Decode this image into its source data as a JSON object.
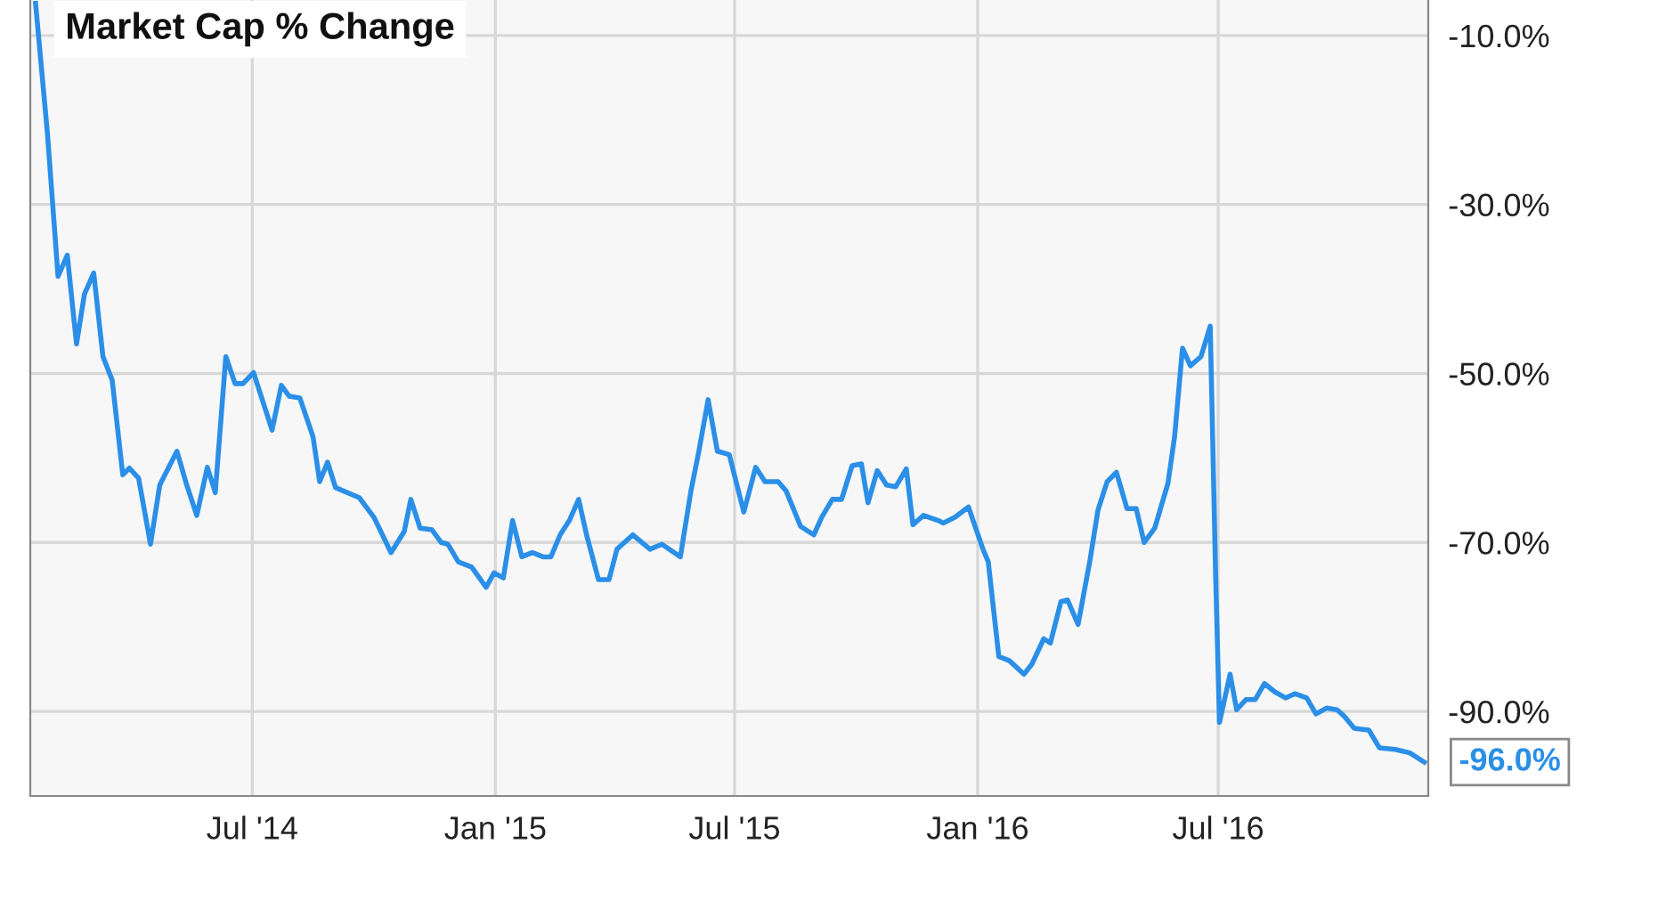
{
  "chart_data": {
    "type": "line",
    "title": "Market Cap % Change",
    "x": [
      "2014-01-18",
      "2014-01-27",
      "2014-02-04",
      "2014-02-11",
      "2014-02-18",
      "2014-02-24",
      "2014-03-03",
      "2014-03-10",
      "2014-03-17",
      "2014-03-25",
      "2014-03-30",
      "2014-04-06",
      "2014-04-15",
      "2014-04-22",
      "2014-05-05",
      "2014-05-12",
      "2014-05-20",
      "2014-05-28",
      "2014-06-03",
      "2014-06-11",
      "2014-06-18",
      "2014-06-24",
      "2014-07-02",
      "2014-07-16",
      "2014-07-23",
      "2014-07-29",
      "2014-08-06",
      "2014-08-16",
      "2014-08-21",
      "2014-08-27",
      "2014-09-02",
      "2014-09-20",
      "2014-10-01",
      "2014-10-14",
      "2014-10-24",
      "2014-10-29",
      "2014-11-05",
      "2014-11-14",
      "2014-11-21",
      "2014-11-26",
      "2014-12-04",
      "2014-12-14",
      "2014-12-25",
      "2014-12-31",
      "2015-01-07",
      "2015-01-14",
      "2015-01-21",
      "2015-01-29",
      "2015-02-06",
      "2015-02-12",
      "2015-02-19",
      "2015-02-26",
      "2015-03-05",
      "2015-03-11",
      "2015-03-20",
      "2015-03-28",
      "2015-04-03",
      "2015-04-15",
      "2015-04-28",
      "2015-05-07",
      "2015-05-21",
      "2015-05-29",
      "2015-06-04",
      "2015-06-11",
      "2015-06-18",
      "2015-06-27",
      "2015-07-08",
      "2015-07-17",
      "2015-07-24",
      "2015-08-03",
      "2015-08-09",
      "2015-08-20",
      "2015-08-30",
      "2015-09-05",
      "2015-09-13",
      "2015-09-20",
      "2015-09-28",
      "2015-10-05",
      "2015-10-10",
      "2015-10-17",
      "2015-10-24",
      "2015-10-31",
      "2015-11-08",
      "2015-11-13",
      "2015-11-21",
      "2015-12-02",
      "2015-12-06",
      "2015-12-15",
      "2015-12-25",
      "2016-01-05",
      "2016-01-09",
      "2016-01-17",
      "2016-01-25",
      "2016-02-05",
      "2016-02-11",
      "2016-02-20",
      "2016-02-25",
      "2016-03-04",
      "2016-03-09",
      "2016-03-17",
      "2016-03-26",
      "2016-04-01",
      "2016-04-08",
      "2016-04-15",
      "2016-04-23",
      "2016-04-30",
      "2016-05-06",
      "2016-05-14",
      "2016-05-24",
      "2016-05-29",
      "2016-06-04",
      "2016-06-10",
      "2016-06-18",
      "2016-06-25",
      "2016-06-29",
      "2016-07-02",
      "2016-07-10",
      "2016-07-15",
      "2016-07-22",
      "2016-07-29",
      "2016-08-05",
      "2016-08-13",
      "2016-08-21",
      "2016-08-28",
      "2016-09-06",
      "2016-09-13",
      "2016-09-21",
      "2016-09-29",
      "2016-10-04",
      "2016-10-12",
      "2016-10-23",
      "2016-10-31",
      "2016-11-12",
      "2016-11-23",
      "2016-12-04"
    ],
    "series": [
      {
        "color": "#2b8fe8",
        "values": [
          -6.2,
          -21.6,
          -38.5,
          -36.0,
          -46.5,
          -40.6,
          -38.1,
          -48.0,
          -50.8,
          -62.0,
          -61.2,
          -62.4,
          -70.2,
          -63.2,
          -59.2,
          -63.0,
          -66.8,
          -61.1,
          -64.1,
          -48.0,
          -51.2,
          -51.2,
          -49.9,
          -56.7,
          -51.4,
          -52.7,
          -52.9,
          -57.5,
          -62.8,
          -60.5,
          -63.5,
          -64.7,
          -67.0,
          -71.2,
          -68.7,
          -64.9,
          -68.3,
          -68.5,
          -70.0,
          -70.2,
          -72.3,
          -72.9,
          -75.3,
          -73.6,
          -74.2,
          -67.4,
          -71.7,
          -71.2,
          -71.7,
          -71.7,
          -69.1,
          -67.4,
          -64.9,
          -69.1,
          -74.4,
          -74.4,
          -70.8,
          -69.1,
          -70.8,
          -70.2,
          -71.7,
          -63.9,
          -59.2,
          -53.1,
          -59.2,
          -59.6,
          -66.4,
          -61.1,
          -62.8,
          -62.8,
          -63.9,
          -68.1,
          -69.1,
          -67.0,
          -64.9,
          -64.9,
          -60.9,
          -60.7,
          -65.3,
          -61.5,
          -63.2,
          -63.4,
          -61.3,
          -67.9,
          -66.8,
          -67.4,
          -67.7,
          -67.0,
          -65.8,
          -70.8,
          -72.3,
          -83.5,
          -84.0,
          -85.6,
          -84.4,
          -81.4,
          -81.9,
          -77.0,
          -76.8,
          -79.7,
          -72.1,
          -66.2,
          -62.8,
          -61.7,
          -66.0,
          -66.0,
          -70.0,
          -68.3,
          -63.0,
          -57.5,
          -47.0,
          -49.1,
          -48.0,
          -44.4,
          -73.4,
          -91.3,
          -85.6,
          -89.8,
          -88.6,
          -88.6,
          -86.7,
          -87.7,
          -88.4,
          -87.9,
          -88.4,
          -90.3,
          -89.6,
          -89.8,
          -90.5,
          -92.0,
          -92.2,
          -94.3,
          -94.5,
          -94.9,
          -96.0
        ]
      }
    ],
    "xlim": [
      "2014-01-14",
      "2016-12-07"
    ],
    "xticks": [
      {
        "value": "2014-07-01",
        "label": "Jul '14"
      },
      {
        "value": "2015-01-01",
        "label": "Jan '15"
      },
      {
        "value": "2015-07-01",
        "label": "Jul '15"
      },
      {
        "value": "2016-01-01",
        "label": "Jan '16"
      },
      {
        "value": "2016-07-01",
        "label": "Jul '16"
      }
    ],
    "ylim": [
      -100,
      -5.8
    ],
    "yticks": [
      {
        "value": -10,
        "label": "-10.0%"
      },
      {
        "value": -30,
        "label": "-30.0%"
      },
      {
        "value": -50,
        "label": "-50.0%"
      },
      {
        "value": -70,
        "label": "-70.0%"
      },
      {
        "value": -90,
        "label": "-90.0%"
      }
    ],
    "annotations": [
      {
        "text": "-96.0%",
        "x": "2016-12-04",
        "y": -96
      }
    ],
    "grid": true,
    "marker": "none",
    "line_style": "solid"
  }
}
